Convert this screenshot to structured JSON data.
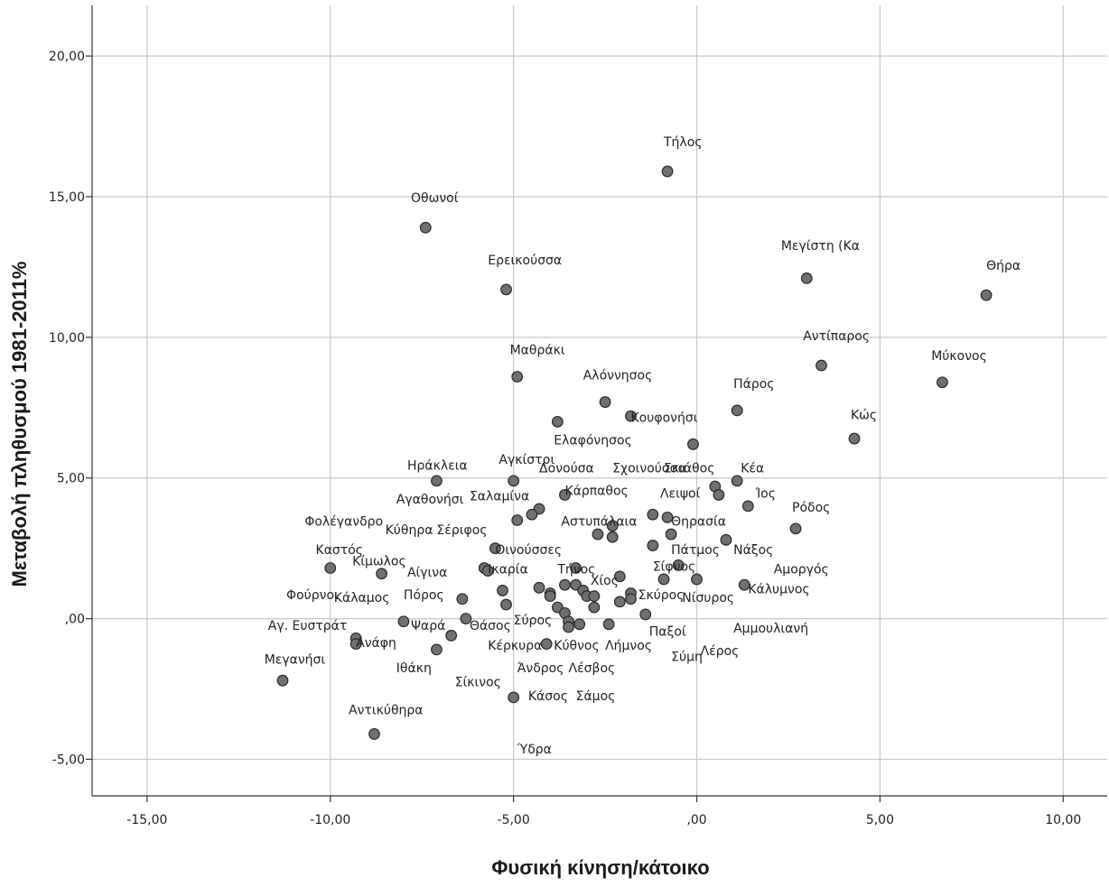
{
  "chart_data": {
    "type": "scatter",
    "xlabel": "Φυσική κίνηση/κάτοικο",
    "ylabel": "Μεταβολή πληθυσμού 1981-2011%",
    "xlim": [
      -16.5,
      11.2
    ],
    "ylim": [
      -6.3,
      21.8
    ],
    "x_ticks": [
      -15,
      -10,
      -5,
      0,
      5,
      10
    ],
    "y_ticks": [
      -5,
      0,
      5,
      10,
      15,
      20
    ],
    "x_tick_labels": [
      "-15,00",
      "-10,00",
      "-5,00",
      ",00",
      "5,00",
      "10,00"
    ],
    "y_tick_labels": [
      "-5,00",
      ",00",
      "5,00",
      "10,00",
      "15,00",
      "20,00"
    ],
    "grid": true,
    "marker_color": "#707070",
    "points": [
      {
        "x": -0.8,
        "y": 15.9
      },
      {
        "x": -7.4,
        "y": 13.9
      },
      {
        "x": 3.0,
        "y": 12.1
      },
      {
        "x": 7.9,
        "y": 11.5
      },
      {
        "x": -5.2,
        "y": 11.7
      },
      {
        "x": 3.4,
        "y": 9.0
      },
      {
        "x": 6.7,
        "y": 8.4
      },
      {
        "x": -4.9,
        "y": 8.6
      },
      {
        "x": -2.5,
        "y": 7.7
      },
      {
        "x": 1.1,
        "y": 7.4
      },
      {
        "x": -1.8,
        "y": 7.2
      },
      {
        "x": -3.8,
        "y": 7.0
      },
      {
        "x": 4.3,
        "y": 6.4
      },
      {
        "x": -0.1,
        "y": 6.2
      },
      {
        "x": -7.1,
        "y": 4.9
      },
      {
        "x": -5.0,
        "y": 4.9
      },
      {
        "x": 1.1,
        "y": 4.9
      },
      {
        "x": 0.5,
        "y": 4.7
      },
      {
        "x": 0.6,
        "y": 4.4
      },
      {
        "x": -3.6,
        "y": 4.4
      },
      {
        "x": 1.4,
        "y": 4.0
      },
      {
        "x": -4.3,
        "y": 3.9
      },
      {
        "x": -4.5,
        "y": 3.7
      },
      {
        "x": -1.2,
        "y": 3.7
      },
      {
        "x": -0.8,
        "y": 3.6
      },
      {
        "x": -4.9,
        "y": 3.5
      },
      {
        "x": -2.3,
        "y": 3.3
      },
      {
        "x": 2.7,
        "y": 3.2
      },
      {
        "x": -0.7,
        "y": 3.0
      },
      {
        "x": -2.7,
        "y": 3.0
      },
      {
        "x": -2.3,
        "y": 2.9
      },
      {
        "x": 0.8,
        "y": 2.8
      },
      {
        "x": -1.2,
        "y": 2.6
      },
      {
        "x": -5.5,
        "y": 2.5
      },
      {
        "x": -10.0,
        "y": 1.8
      },
      {
        "x": -5.8,
        "y": 1.8
      },
      {
        "x": -5.7,
        "y": 1.7
      },
      {
        "x": -8.6,
        "y": 1.6
      },
      {
        "x": -0.5,
        "y": 1.9
      },
      {
        "x": -3.3,
        "y": 1.8
      },
      {
        "x": -2.1,
        "y": 1.5
      },
      {
        "x": -0.9,
        "y": 1.4
      },
      {
        "x": 0.0,
        "y": 1.4
      },
      {
        "x": 1.3,
        "y": 1.2
      },
      {
        "x": -3.6,
        "y": 1.2
      },
      {
        "x": -3.3,
        "y": 1.2
      },
      {
        "x": -4.3,
        "y": 1.1
      },
      {
        "x": -3.1,
        "y": 1.0
      },
      {
        "x": -5.3,
        "y": 1.0
      },
      {
        "x": -4.0,
        "y": 0.9
      },
      {
        "x": -3.0,
        "y": 0.8
      },
      {
        "x": -4.0,
        "y": 0.8
      },
      {
        "x": -2.8,
        "y": 0.8
      },
      {
        "x": -1.8,
        "y": 0.9
      },
      {
        "x": -1.8,
        "y": 0.7
      },
      {
        "x": -6.4,
        "y": 0.7
      },
      {
        "x": -2.1,
        "y": 0.6
      },
      {
        "x": -5.2,
        "y": 0.5
      },
      {
        "x": -3.8,
        "y": 0.4
      },
      {
        "x": -2.8,
        "y": 0.4
      },
      {
        "x": -3.6,
        "y": 0.2
      },
      {
        "x": -1.4,
        "y": 0.15
      },
      {
        "x": -6.3,
        "y": 0.0
      },
      {
        "x": -3.5,
        "y": -0.1
      },
      {
        "x": -8.0,
        "y": -0.1
      },
      {
        "x": -3.2,
        "y": -0.2
      },
      {
        "x": -2.4,
        "y": -0.2
      },
      {
        "x": -3.5,
        "y": -0.3
      },
      {
        "x": -6.7,
        "y": -0.6
      },
      {
        "x": -9.3,
        "y": -0.7
      },
      {
        "x": -9.3,
        "y": -0.9
      },
      {
        "x": -4.1,
        "y": -0.9
      },
      {
        "x": -7.1,
        "y": -1.1
      },
      {
        "x": -11.3,
        "y": -2.2
      },
      {
        "x": -5.0,
        "y": -2.8
      },
      {
        "x": -8.8,
        "y": -4.1
      }
    ],
    "annotations": [
      {
        "text": "Τήλος",
        "x": -0.9,
        "y": 16.8
      },
      {
        "text": "Οθωνοί",
        "x": -7.8,
        "y": 14.8
      },
      {
        "text": "Μεγίστη (Κα",
        "x": 2.3,
        "y": 13.1
      },
      {
        "text": "Θήρα",
        "x": 7.9,
        "y": 12.4
      },
      {
        "text": "Ερεικούσσα",
        "x": -5.7,
        "y": 12.6
      },
      {
        "text": "Αντίπαρος",
        "x": 2.9,
        "y": 9.9
      },
      {
        "text": "Μύκονος",
        "x": 6.4,
        "y": 9.2
      },
      {
        "text": "Μαθράκι",
        "x": -5.1,
        "y": 9.4
      },
      {
        "text": "Αλόννησος",
        "x": -3.1,
        "y": 8.5
      },
      {
        "text": "Πάρος",
        "x": 1.0,
        "y": 8.2
      },
      {
        "text": "Κουφονήσι",
        "x": -1.8,
        "y": 7.0
      },
      {
        "text": "Κώς",
        "x": 4.2,
        "y": 7.1
      },
      {
        "text": "Ελαφόνησος",
        "x": -3.9,
        "y": 6.2
      },
      {
        "text": "Δονούσα",
        "x": -4.3,
        "y": 5.2
      },
      {
        "text": "Σχοινούσσα",
        "x": -2.3,
        "y": 5.2
      },
      {
        "text": "Σκιάθος",
        "x": -0.9,
        "y": 5.2
      },
      {
        "text": "Κέα",
        "x": 1.2,
        "y": 5.2
      },
      {
        "text": "Ηράκλεια",
        "x": -7.9,
        "y": 5.3
      },
      {
        "text": "Αγκίστρι",
        "x": -5.4,
        "y": 5.5
      },
      {
        "text": "Ίος",
        "x": 1.6,
        "y": 4.3
      },
      {
        "text": "Κάρπαθος",
        "x": -3.6,
        "y": 4.4
      },
      {
        "text": "Λειψοί",
        "x": -1.0,
        "y": 4.3
      },
      {
        "text": "Αγαθονήσι",
        "x": -8.2,
        "y": 4.1
      },
      {
        "text": "Σαλαμίνα",
        "x": -6.2,
        "y": 4.2
      },
      {
        "text": "Ρόδος",
        "x": 2.6,
        "y": 3.8
      },
      {
        "text": "Φολέγανδρο",
        "x": -10.7,
        "y": 3.3
      },
      {
        "text": "Αστυπάλαια",
        "x": -3.7,
        "y": 3.3
      },
      {
        "text": "Θηρασία",
        "x": -0.7,
        "y": 3.3
      },
      {
        "text": "Κύθηρα",
        "x": -8.5,
        "y": 3.0
      },
      {
        "text": "Σέριφος",
        "x": -7.1,
        "y": 3.0
      },
      {
        "text": "Οινούσσες",
        "x": -5.5,
        "y": 2.3
      },
      {
        "text": "Πάτμος",
        "x": -0.7,
        "y": 2.3
      },
      {
        "text": "Νάξος",
        "x": 1.0,
        "y": 2.3
      },
      {
        "text": "Καστός",
        "x": -10.4,
        "y": 2.3
      },
      {
        "text": "Κίμωλος",
        "x": -9.4,
        "y": 1.9
      },
      {
        "text": "Αμοργός",
        "x": 2.1,
        "y": 1.6
      },
      {
        "text": "Αίγινα",
        "x": -7.9,
        "y": 1.5
      },
      {
        "text": "Ικαρία",
        "x": -5.7,
        "y": 1.6
      },
      {
        "text": "Τήνος",
        "x": -3.8,
        "y": 1.6
      },
      {
        "text": "Σίφνος",
        "x": -1.2,
        "y": 1.7
      },
      {
        "text": "Χίος",
        "x": -2.9,
        "y": 1.2
      },
      {
        "text": "Κάλυμνος",
        "x": 1.4,
        "y": 0.9
      },
      {
        "text": "Φούρνοι",
        "x": -11.2,
        "y": 0.7
      },
      {
        "text": "Κάλαμος",
        "x": -9.9,
        "y": 0.6
      },
      {
        "text": "Πόρος",
        "x": -8.0,
        "y": 0.7
      },
      {
        "text": "Σκύρος",
        "x": -1.6,
        "y": 0.7
      },
      {
        "text": "Νίσυρος",
        "x": -0.4,
        "y": 0.6
      },
      {
        "text": "Σύρος",
        "x": -5.0,
        "y": -0.2
      },
      {
        "text": "Αγ. Ευστράτ",
        "x": -11.7,
        "y": -0.4
      },
      {
        "text": "Ψαρά",
        "x": -7.8,
        "y": -0.4
      },
      {
        "text": "Θάσος",
        "x": -6.2,
        "y": -0.4
      },
      {
        "text": "Αμμουλιανή",
        "x": 1.0,
        "y": -0.5
      },
      {
        "text": "Παξοί",
        "x": -1.3,
        "y": -0.6
      },
      {
        "text": "Ανάφη",
        "x": -9.3,
        "y": -1.0
      },
      {
        "text": "Κέρκυρα",
        "x": -5.7,
        "y": -1.1
      },
      {
        "text": "Κύθνος",
        "x": -3.9,
        "y": -1.1
      },
      {
        "text": "Λήμνος",
        "x": -2.5,
        "y": -1.1
      },
      {
        "text": "Σύμη",
        "x": -0.7,
        "y": -1.5
      },
      {
        "text": "Λέρος",
        "x": 0.1,
        "y": -1.3
      },
      {
        "text": "Μεγανήσι",
        "x": -11.8,
        "y": -1.6
      },
      {
        "text": "Ιθάκη",
        "x": -8.2,
        "y": -1.9
      },
      {
        "text": "Άνδρος",
        "x": -4.9,
        "y": -1.9
      },
      {
        "text": "Λέσβος",
        "x": -3.5,
        "y": -1.9
      },
      {
        "text": "Σίκινος",
        "x": -6.6,
        "y": -2.4
      },
      {
        "text": "Κάσος",
        "x": -4.6,
        "y": -2.9
      },
      {
        "text": "Σάμος",
        "x": -3.3,
        "y": -2.9
      },
      {
        "text": "Αντικύθηρα",
        "x": -9.5,
        "y": -3.4
      },
      {
        "text": "Ύδρα",
        "x": -4.9,
        "y": -4.8
      }
    ]
  }
}
